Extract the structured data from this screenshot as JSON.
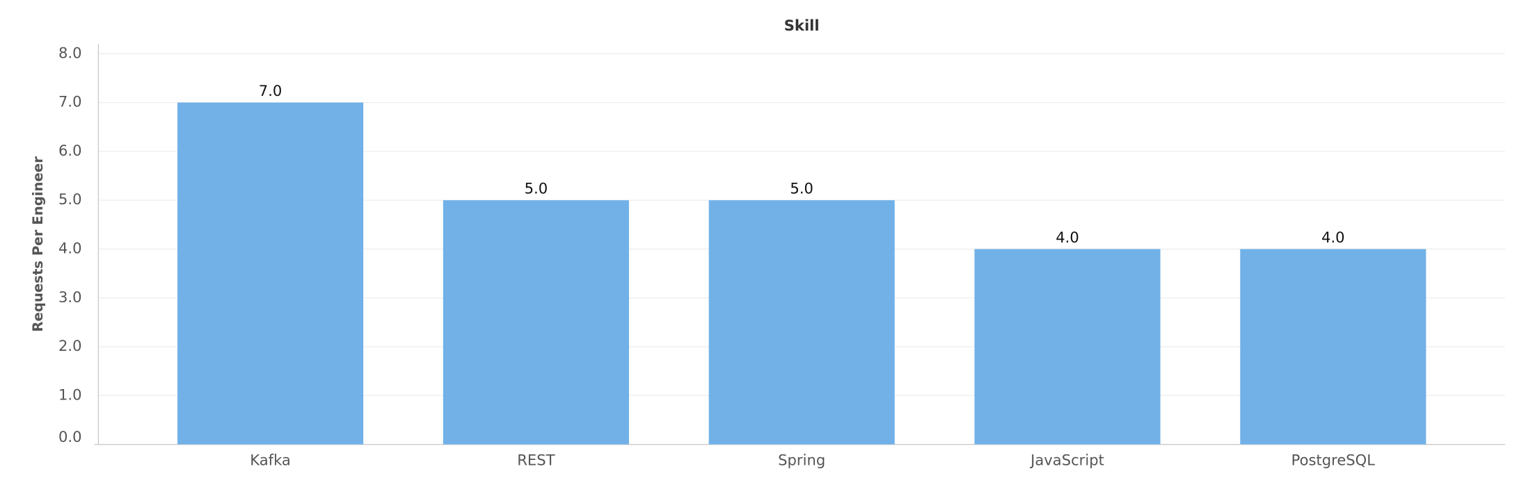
{
  "chart_data": {
    "type": "bar",
    "title": "Skill",
    "y_label": "Requests Per Engineer",
    "categories": [
      "Kafka",
      "REST",
      "Spring",
      "JavaScript",
      "PostgreSQL"
    ],
    "values": [
      7,
      5,
      5,
      4,
      4
    ],
    "value_labels": [
      "7.0",
      "5.0",
      "5.0",
      "4.0",
      "4.0"
    ],
    "color": "#71b1e8",
    "ylim": [
      0,
      8.2
    ],
    "yticks": [
      {
        "value": 0,
        "label": "0.0"
      },
      {
        "value": 1,
        "label": "1.0"
      },
      {
        "value": 2,
        "label": "2.0"
      },
      {
        "value": 3,
        "label": "3.0"
      },
      {
        "value": 4,
        "label": "4.0"
      },
      {
        "value": 5,
        "label": "5.0"
      },
      {
        "value": 6,
        "label": "6.0"
      },
      {
        "value": 7,
        "label": "7.0"
      },
      {
        "value": 8,
        "label": "8.0"
      }
    ],
    "grid": true
  }
}
